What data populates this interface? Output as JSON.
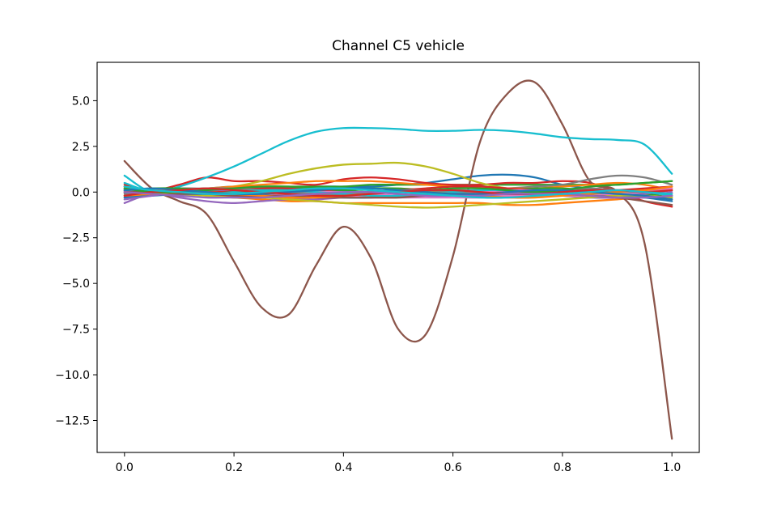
{
  "chart_data": {
    "type": "line",
    "title": "Channel C5 vehicle",
    "xlabel": "",
    "ylabel": "",
    "xlim": [
      -0.05,
      1.05
    ],
    "ylim": [
      -14.25,
      7.1
    ],
    "x_ticks": [
      0.0,
      0.2,
      0.4,
      0.6,
      0.8,
      1.0
    ],
    "x_tick_labels": [
      "0.0",
      "0.2",
      "0.4",
      "0.6",
      "0.8",
      "1.0"
    ],
    "y_ticks": [
      5.0,
      2.5,
      0.0,
      -2.5,
      -5.0,
      -7.5,
      -10.0,
      -12.5
    ],
    "y_tick_labels": [
      "5.0",
      "2.5",
      "0.0",
      "−2.5",
      "−5.0",
      "−7.5",
      "−10.0",
      "−12.5"
    ],
    "grid": false,
    "legend": "none",
    "x": [
      0.0,
      0.05,
      0.1,
      0.15,
      0.2,
      0.25,
      0.3,
      0.35,
      0.4,
      0.45,
      0.5,
      0.55,
      0.6,
      0.65,
      0.7,
      0.75,
      0.8,
      0.85,
      0.9,
      0.95,
      1.0
    ],
    "series": [
      {
        "color": "#1f77b4",
        "values": [
          0.1,
          -0.1,
          0.0,
          0.1,
          0.1,
          0.2,
          0.2,
          0.3,
          0.3,
          0.3,
          0.4,
          0.5,
          0.7,
          0.9,
          0.95,
          0.8,
          0.4,
          0.2,
          0.1,
          0.0,
          -0.1
        ]
      },
      {
        "color": "#ff7f0e",
        "values": [
          0.3,
          0.1,
          -0.1,
          -0.2,
          -0.3,
          -0.4,
          -0.5,
          -0.5,
          -0.6,
          -0.6,
          -0.6,
          -0.6,
          -0.6,
          -0.6,
          -0.7,
          -0.7,
          -0.6,
          -0.5,
          -0.4,
          -0.3,
          -0.4
        ]
      },
      {
        "color": "#2ca02c",
        "values": [
          0.2,
          0.0,
          0.1,
          0.2,
          0.2,
          0.3,
          0.3,
          0.3,
          0.3,
          0.4,
          0.4,
          0.4,
          0.4,
          0.4,
          0.4,
          0.4,
          0.4,
          0.4,
          0.4,
          0.5,
          0.6
        ]
      },
      {
        "color": "#d62728",
        "values": [
          0.4,
          0.1,
          0.4,
          0.8,
          0.6,
          0.6,
          0.5,
          0.4,
          0.7,
          0.8,
          0.7,
          0.5,
          0.4,
          0.4,
          0.5,
          0.5,
          0.6,
          0.5,
          0.0,
          -0.5,
          -0.8
        ]
      },
      {
        "color": "#9467bd",
        "values": [
          -0.6,
          -0.1,
          -0.3,
          -0.5,
          -0.6,
          -0.5,
          -0.4,
          -0.4,
          -0.3,
          -0.3,
          -0.2,
          -0.2,
          -0.2,
          -0.2,
          -0.1,
          -0.1,
          -0.2,
          -0.3,
          -0.3,
          -0.2,
          0.0
        ]
      },
      {
        "color": "#8c564b",
        "values": [
          1.7,
          0.2,
          -0.5,
          -1.2,
          -3.8,
          -6.3,
          -6.7,
          -4.0,
          -1.9,
          -3.6,
          -7.5,
          -7.8,
          -3.5,
          2.8,
          5.4,
          6.0,
          3.7,
          0.6,
          0.0,
          -2.8,
          -13.5
        ]
      },
      {
        "color": "#e377c2",
        "values": [
          0.0,
          0.1,
          0.1,
          0.0,
          -0.1,
          -0.1,
          -0.2,
          -0.2,
          -0.2,
          -0.3,
          -0.3,
          -0.3,
          -0.3,
          -0.3,
          -0.2,
          -0.2,
          -0.2,
          -0.2,
          -0.1,
          -0.1,
          -0.1
        ]
      },
      {
        "color": "#7f7f7f",
        "values": [
          0.0,
          0.1,
          0.2,
          0.2,
          0.3,
          0.2,
          0.1,
          0.0,
          -0.1,
          -0.1,
          0.0,
          0.0,
          0.1,
          0.1,
          0.2,
          0.3,
          0.4,
          0.7,
          0.9,
          0.8,
          0.4
        ]
      },
      {
        "color": "#bcbd22",
        "values": [
          -0.3,
          -0.1,
          0.0,
          0.1,
          0.3,
          0.6,
          1.0,
          1.3,
          1.5,
          1.55,
          1.6,
          1.4,
          1.0,
          0.5,
          0.2,
          0.1,
          0.0,
          0.0,
          0.1,
          0.1,
          0.2
        ]
      },
      {
        "color": "#17becf",
        "values": [
          0.9,
          0.0,
          0.3,
          0.8,
          1.4,
          2.1,
          2.8,
          3.3,
          3.5,
          3.5,
          3.45,
          3.35,
          3.35,
          3.4,
          3.35,
          3.2,
          3.0,
          2.9,
          2.85,
          2.6,
          1.0
        ]
      },
      {
        "color": "#ff7f0e",
        "values": [
          0.2,
          0.1,
          0.1,
          0.2,
          0.3,
          0.4,
          0.5,
          0.6,
          0.6,
          0.6,
          0.5,
          0.4,
          0.3,
          0.2,
          0.2,
          0.2,
          0.3,
          0.4,
          0.5,
          0.4,
          0.1
        ]
      },
      {
        "color": "#1f77b4",
        "values": [
          -0.3,
          -0.2,
          -0.1,
          0.0,
          0.0,
          0.0,
          -0.1,
          -0.2,
          -0.3,
          -0.3,
          -0.2,
          -0.1,
          0.0,
          0.1,
          0.1,
          0.0,
          -0.1,
          -0.1,
          -0.2,
          -0.3,
          -0.5
        ]
      },
      {
        "color": "#2ca02c",
        "values": [
          0.1,
          0.2,
          0.2,
          0.1,
          0.0,
          -0.1,
          -0.1,
          0.0,
          0.1,
          0.2,
          0.2,
          0.1,
          0.0,
          0.0,
          0.1,
          0.2,
          0.2,
          0.1,
          0.0,
          -0.1,
          -0.3
        ]
      },
      {
        "color": "#d62728",
        "values": [
          0.0,
          -0.1,
          -0.1,
          0.0,
          0.1,
          0.2,
          0.2,
          0.1,
          0.0,
          0.0,
          0.1,
          0.2,
          0.3,
          0.3,
          0.2,
          0.1,
          0.0,
          0.0,
          0.1,
          0.2,
          0.3
        ]
      },
      {
        "color": "#9467bd",
        "values": [
          -0.4,
          -0.2,
          0.0,
          0.1,
          0.1,
          0.0,
          -0.1,
          -0.1,
          0.0,
          0.0,
          -0.1,
          -0.2,
          -0.2,
          -0.1,
          0.0,
          0.0,
          -0.1,
          -0.2,
          -0.2,
          -0.1,
          0.1
        ]
      },
      {
        "color": "#e377c2",
        "values": [
          0.2,
          0.1,
          0.0,
          -0.1,
          -0.2,
          -0.2,
          -0.1,
          0.0,
          0.0,
          -0.1,
          -0.2,
          -0.2,
          -0.1,
          0.0,
          0.1,
          0.1,
          0.0,
          -0.1,
          -0.1,
          0.0,
          0.2
        ]
      },
      {
        "color": "#7f7f7f",
        "values": [
          -0.1,
          0.0,
          0.1,
          0.2,
          0.2,
          0.1,
          0.0,
          -0.1,
          -0.1,
          0.0,
          0.1,
          0.1,
          0.0,
          -0.1,
          -0.1,
          0.0,
          0.1,
          0.2,
          0.1,
          0.0,
          -0.2
        ]
      },
      {
        "color": "#bcbd22",
        "values": [
          0.3,
          0.1,
          -0.1,
          -0.2,
          -0.3,
          -0.3,
          -0.4,
          -0.5,
          -0.6,
          -0.7,
          -0.8,
          -0.85,
          -0.8,
          -0.7,
          -0.6,
          -0.5,
          -0.4,
          -0.3,
          -0.2,
          -0.2,
          -0.3
        ]
      },
      {
        "color": "#17becf",
        "values": [
          0.5,
          0.0,
          -0.1,
          -0.1,
          0.0,
          0.1,
          0.1,
          0.0,
          -0.1,
          -0.2,
          -0.2,
          -0.1,
          0.0,
          0.1,
          0.1,
          0.0,
          -0.1,
          -0.1,
          0.0,
          0.0,
          -0.2
        ]
      },
      {
        "color": "#8c564b",
        "values": [
          0.0,
          0.0,
          -0.1,
          -0.1,
          -0.2,
          -0.2,
          -0.2,
          -0.3,
          -0.3,
          -0.3,
          -0.3,
          -0.2,
          -0.2,
          -0.1,
          -0.1,
          -0.1,
          -0.1,
          -0.2,
          -0.3,
          -0.5,
          -0.7
        ]
      },
      {
        "color": "#ff7f0e",
        "values": [
          -0.2,
          -0.1,
          0.0,
          0.0,
          -0.1,
          -0.2,
          -0.3,
          -0.3,
          -0.2,
          -0.1,
          0.0,
          0.0,
          -0.1,
          -0.2,
          -0.3,
          -0.3,
          -0.2,
          -0.1,
          0.0,
          0.1,
          0.3
        ]
      },
      {
        "color": "#2ca02c",
        "values": [
          0.2,
          0.0,
          0.0,
          0.1,
          0.2,
          0.3,
          0.3,
          0.2,
          0.1,
          0.0,
          0.0,
          0.1,
          0.2,
          0.2,
          0.1,
          0.0,
          0.1,
          0.3,
          0.4,
          0.5,
          0.6
        ]
      },
      {
        "color": "#1f77b4",
        "values": [
          0.1,
          0.2,
          0.1,
          0.0,
          -0.1,
          -0.1,
          0.0,
          0.1,
          0.2,
          0.2,
          0.1,
          0.0,
          -0.1,
          -0.1,
          0.0,
          0.1,
          0.1,
          0.0,
          -0.1,
          -0.2,
          -0.4
        ]
      },
      {
        "color": "#d62728",
        "values": [
          -0.2,
          0.0,
          0.1,
          0.2,
          0.1,
          0.0,
          -0.1,
          -0.2,
          -0.2,
          -0.1,
          0.0,
          0.1,
          0.1,
          0.0,
          -0.1,
          -0.1,
          0.0,
          0.1,
          0.1,
          0.0,
          0.1
        ]
      },
      {
        "color": "#9467bd",
        "values": [
          0.0,
          -0.1,
          -0.2,
          -0.3,
          -0.3,
          -0.3,
          -0.2,
          -0.1,
          0.0,
          0.0,
          -0.1,
          -0.2,
          -0.2,
          -0.2,
          -0.1,
          -0.1,
          -0.1,
          -0.2,
          -0.3,
          -0.3,
          -0.2
        ]
      },
      {
        "color": "#17becf",
        "values": [
          0.3,
          0.1,
          0.0,
          -0.1,
          -0.1,
          0.0,
          0.1,
          0.2,
          0.2,
          0.1,
          0.0,
          -0.1,
          -0.2,
          -0.3,
          -0.3,
          -0.2,
          -0.1,
          0.0,
          0.1,
          0.0,
          -0.1
        ]
      }
    ]
  }
}
